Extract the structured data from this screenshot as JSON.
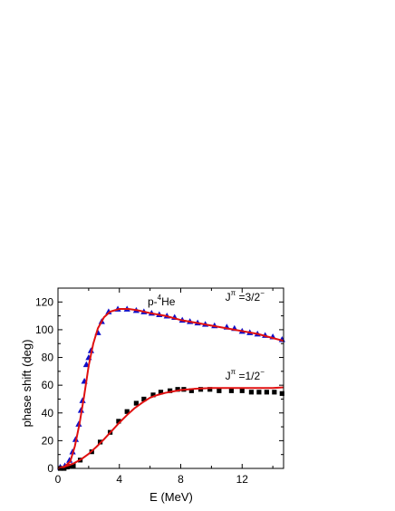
{
  "chart_data": {
    "type": "scatter",
    "title": "p-4He",
    "title_parts": {
      "prefix": "p-",
      "superscript": "4",
      "suffix": "He"
    },
    "xlabel": "E (MeV)",
    "ylabel": "phase shift (deg)",
    "xlim": [
      0,
      14.7
    ],
    "ylim": [
      0,
      130
    ],
    "xticks": [
      0,
      4,
      8,
      12
    ],
    "yticks": [
      0,
      20,
      40,
      60,
      80,
      100,
      120
    ],
    "grid": false,
    "legend": "none",
    "series": [
      {
        "name": "Jπ=3/2−",
        "kind": "points",
        "marker": "triangle",
        "color": "#1010c8",
        "x": [
          0.15,
          0.45,
          0.75,
          0.95,
          1.15,
          1.35,
          1.5,
          1.6,
          1.72,
          1.85,
          2.0,
          2.15,
          2.6,
          2.85,
          3.3,
          3.9,
          4.5,
          5.1,
          5.6,
          6.1,
          6.6,
          7.1,
          7.6,
          8.1,
          8.6,
          9.1,
          9.6,
          10.2,
          11.0,
          11.5,
          12.0,
          12.5,
          13.0,
          13.5,
          14.0,
          14.6
        ],
        "y": [
          1,
          2,
          6,
          12,
          21,
          32,
          42,
          49,
          63,
          75,
          80,
          85,
          98,
          106,
          113,
          115,
          115,
          114,
          113,
          112,
          111,
          110,
          109,
          107,
          106,
          105,
          104,
          103,
          102,
          101,
          99,
          98,
          97,
          96,
          95,
          93
        ]
      },
      {
        "name": "Jπ=3/2− fit",
        "kind": "line",
        "color": "#e01010",
        "x": [
          0,
          0.4,
          0.8,
          1.1,
          1.4,
          1.7,
          2.0,
          2.3,
          2.6,
          3.0,
          3.4,
          4.0,
          4.6,
          5.2,
          6.0,
          7.0,
          8.0,
          9.0,
          10.0,
          11.0,
          12.0,
          13.0,
          14.0,
          14.7
        ],
        "y": [
          0,
          1,
          5,
          16,
          32,
          52,
          74,
          90,
          101,
          109,
          113,
          115,
          115,
          114,
          112,
          110,
          107,
          105,
          103,
          101,
          99,
          97,
          94,
          92
        ]
      },
      {
        "name": "Jπ=1/2−",
        "kind": "points",
        "marker": "square",
        "color": "#000000",
        "x": [
          0.15,
          0.4,
          0.6,
          0.8,
          1.0,
          1.45,
          2.2,
          2.75,
          3.4,
          3.95,
          4.5,
          5.1,
          5.6,
          6.2,
          6.7,
          7.3,
          7.8,
          8.2,
          8.7,
          9.3,
          9.9,
          10.5,
          11.3,
          12.0,
          12.6,
          13.1,
          13.6,
          14.1,
          14.6
        ],
        "y": [
          0,
          0,
          1,
          1.5,
          2,
          6,
          12,
          19,
          26,
          34,
          41,
          47,
          50,
          53,
          55,
          56,
          57,
          57,
          56,
          57,
          57,
          56,
          56,
          56,
          55,
          55,
          55,
          55,
          54
        ]
      },
      {
        "name": "Jπ=1/2− fit",
        "kind": "line",
        "color": "#e01010",
        "x": [
          0,
          0.5,
          1.0,
          1.5,
          2.0,
          2.5,
          3.0,
          3.5,
          4.0,
          4.5,
          5.0,
          5.5,
          6.0,
          6.5,
          7.0,
          7.5,
          8.0,
          9.0,
          10.0,
          11.0,
          12.0,
          13.0,
          14.0,
          14.7
        ],
        "y": [
          0,
          1.5,
          3.5,
          6.5,
          10.5,
          15.5,
          21,
          27,
          33,
          38.5,
          43.5,
          47.5,
          51,
          53,
          54.5,
          55.5,
          56.5,
          57.5,
          58,
          58,
          58,
          58,
          58,
          58.5
        ]
      }
    ],
    "annotations": [
      {
        "id": "ann32",
        "base": "J",
        "sup1": "π",
        "mid": " =3/2",
        "sup2": "−",
        "x": 10.9,
        "y": 121
      },
      {
        "id": "ann12",
        "base": "J",
        "sup1": "π",
        "mid": " =1/2",
        "sup2": "−",
        "x": 10.9,
        "y": 64
      }
    ]
  }
}
